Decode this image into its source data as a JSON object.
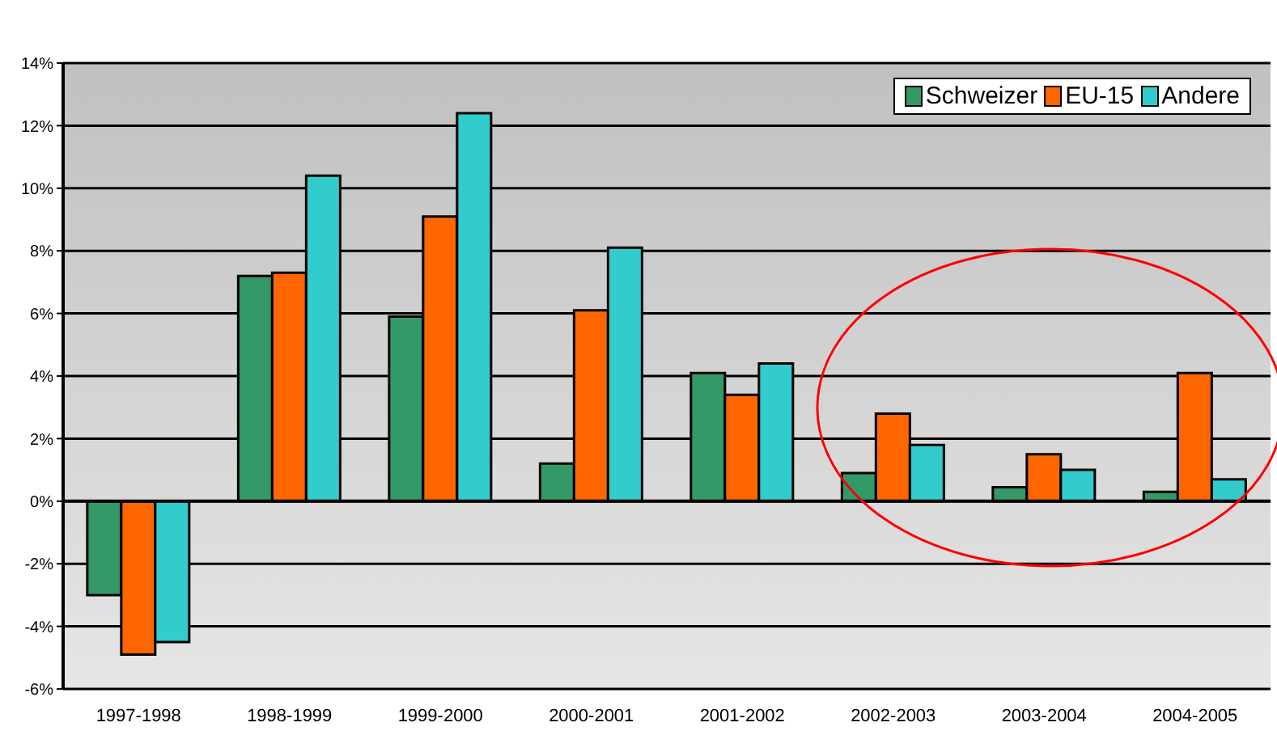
{
  "chart_data": {
    "type": "bar",
    "categories": [
      "1997-1998",
      "1998-1999",
      "1999-2000",
      "2000-2001",
      "2001-2002",
      "2002-2003",
      "2003-2004",
      "2004-2005"
    ],
    "series": [
      {
        "name": "Schweizer",
        "color": "#339966",
        "values": [
          -3.0,
          7.2,
          5.9,
          1.2,
          4.1,
          0.9,
          0.45,
          0.3
        ]
      },
      {
        "name": "EU-15",
        "color": "#ff6600",
        "values": [
          -4.9,
          7.3,
          9.1,
          6.1,
          3.4,
          2.8,
          1.5,
          4.1
        ]
      },
      {
        "name": "Andere",
        "color": "#33cccc",
        "values": [
          -4.5,
          10.4,
          12.4,
          8.1,
          4.4,
          1.8,
          1.0,
          0.7
        ]
      }
    ],
    "ylim": [
      -6,
      14
    ],
    "yticks": [
      {
        "value": -6,
        "label": "-6%"
      },
      {
        "value": -4,
        "label": "-4%"
      },
      {
        "value": -2,
        "label": "-2%"
      },
      {
        "value": 0,
        "label": "0%"
      },
      {
        "value": 2,
        "label": "2%"
      },
      {
        "value": 4,
        "label": "4%"
      },
      {
        "value": 6,
        "label": "6%"
      },
      {
        "value": 8,
        "label": "8%"
      },
      {
        "value": 10,
        "label": "10%"
      },
      {
        "value": 12,
        "label": "12%"
      },
      {
        "value": 14,
        "label": "14%"
      }
    ],
    "grid": "y",
    "legend": "top right"
  }
}
